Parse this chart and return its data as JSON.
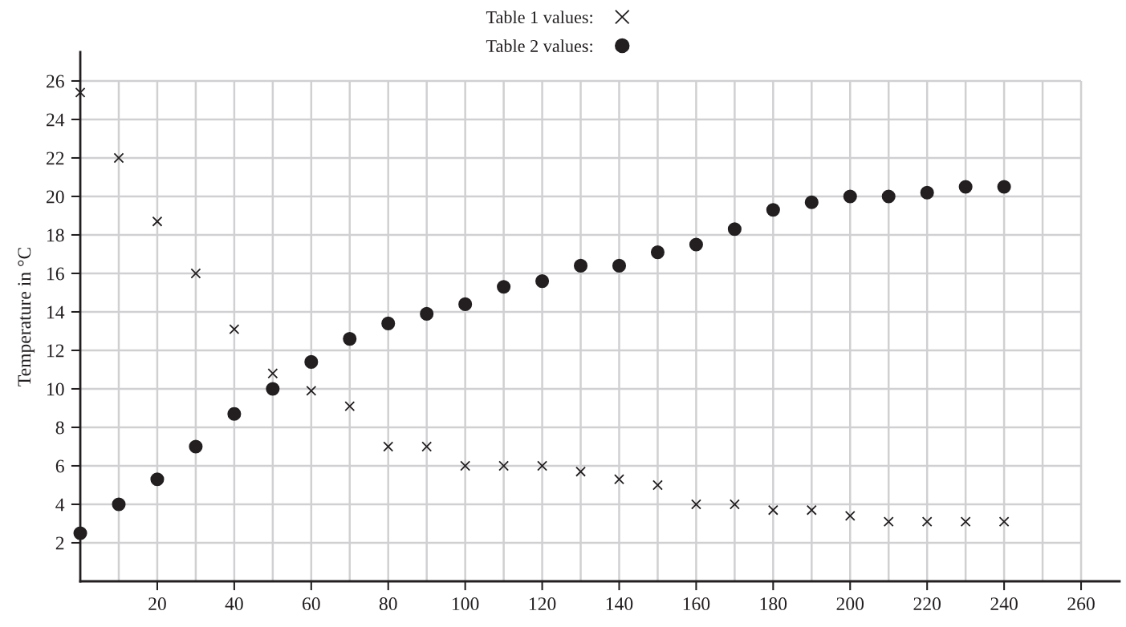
{
  "chart_data": {
    "type": "scatter",
    "ylabel": "Temperature in °C",
    "legend": "top",
    "grid": true,
    "x": [
      0,
      10,
      20,
      30,
      40,
      50,
      60,
      70,
      80,
      90,
      100,
      110,
      120,
      130,
      140,
      150,
      160,
      170,
      180,
      190,
      200,
      210,
      220,
      230,
      240
    ],
    "series": [
      {
        "name": "Table 1 values:",
        "color": "#231f20",
        "marker": "cross",
        "values": [
          25.4,
          22,
          18.7,
          16,
          13.1,
          10.8,
          9.9,
          9.1,
          7,
          7,
          6,
          6,
          6,
          5.7,
          5.3,
          5,
          4,
          4,
          3.7,
          3.7,
          3.4,
          3.1,
          3.1,
          3.1,
          3.1
        ]
      },
      {
        "name": "Table 2 values:",
        "color": "#231f20",
        "marker": "circle",
        "values": [
          2.5,
          4,
          5.3,
          7,
          8.7,
          10,
          11.4,
          12.6,
          13.4,
          13.9,
          14.4,
          15.3,
          15.6,
          16.4,
          16.4,
          17.1,
          17.5,
          18.3,
          19.3,
          19.7,
          20,
          20,
          20.2,
          20.5,
          20.5
        ]
      }
    ],
    "xlim": [
      0,
      270
    ],
    "ylim": [
      0,
      27.5
    ],
    "xticks": [
      {
        "value": 10,
        "label": null
      },
      20,
      {
        "value": 30,
        "label": null
      },
      40,
      {
        "value": 50,
        "label": null
      },
      60,
      {
        "value": 70,
        "label": null
      },
      80,
      {
        "value": 90,
        "label": null
      },
      100,
      {
        "value": 110,
        "label": null
      },
      120,
      {
        "value": 130,
        "label": null
      },
      140,
      {
        "value": 150,
        "label": null
      },
      160,
      {
        "value": 170,
        "label": null
      },
      180,
      {
        "value": 190,
        "label": null
      },
      200,
      {
        "value": 210,
        "label": null
      },
      220,
      {
        "value": 230,
        "label": null
      },
      240,
      {
        "value": 250,
        "label": null
      },
      260
    ],
    "yticks": [
      2,
      4,
      6,
      8,
      10,
      12,
      14,
      16,
      18,
      20,
      22,
      24,
      26
    ]
  }
}
